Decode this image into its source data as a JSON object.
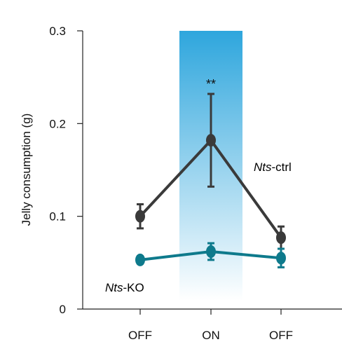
{
  "chart_data": {
    "type": "line",
    "title": "",
    "xlabel": "",
    "ylabel": "Jelly consumption (g)",
    "categories": [
      "OFF",
      "ON",
      "OFF"
    ],
    "ylim": [
      0,
      0.3
    ],
    "yticks": [
      {
        "value": 0,
        "label": "0"
      },
      {
        "value": 0.1,
        "label": "0.1"
      },
      {
        "value": 0.2,
        "label": "0.2"
      },
      {
        "value": 0.3,
        "label": "0.3"
      }
    ],
    "highlight_category_index": 1,
    "highlight_color": "#2ea6dd",
    "series": [
      {
        "name_italic": "Nts",
        "name_rest": "-ctrl",
        "color": "#3a3a3a",
        "values": [
          0.1,
          0.182,
          0.077
        ],
        "errors": [
          0.013,
          0.05,
          0.012
        ]
      },
      {
        "name_italic": "Nts",
        "name_rest": "-KO",
        "color": "#0e7a8c",
        "values": [
          0.053,
          0.062,
          0.055
        ],
        "errors": [
          0.004,
          0.009,
          0.01
        ]
      }
    ],
    "annotations": [
      {
        "text": "**",
        "category_index": 1
      }
    ]
  }
}
